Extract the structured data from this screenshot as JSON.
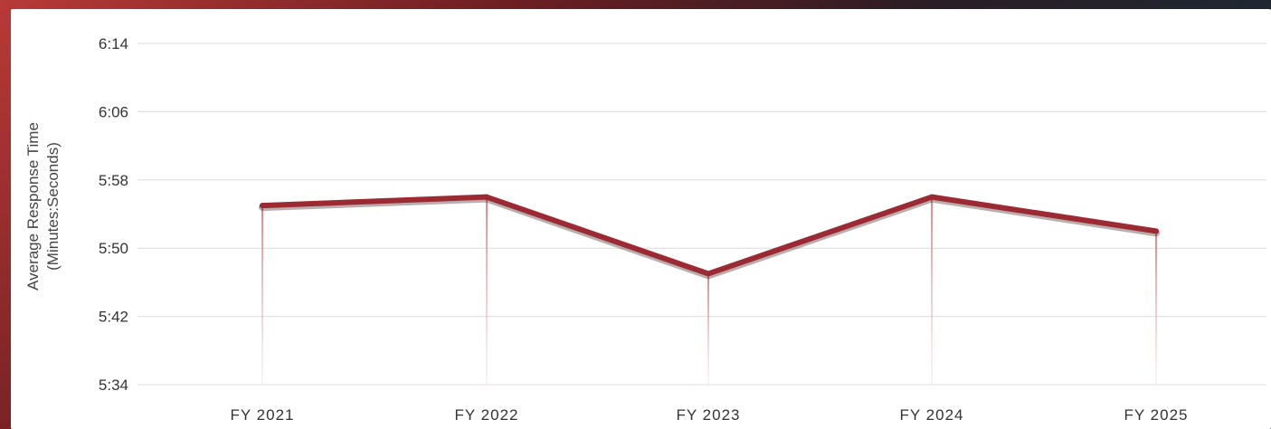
{
  "chart_data": {
    "type": "line",
    "title": "",
    "xlabel": "",
    "ylabel": "Average Response Time",
    "ylabel_sub": "(Minutes:Seconds)",
    "categories": [
      "FY 2021",
      "FY 2022",
      "FY 2023",
      "FY 2024",
      "FY 2025"
    ],
    "y_ticks": [
      "5:34",
      "5:42",
      "5:50",
      "5:58",
      "6:06",
      "6:14"
    ],
    "y_tick_seconds": [
      334,
      342,
      350,
      358,
      366,
      374
    ],
    "ylim_seconds": [
      334,
      374
    ],
    "series": [
      {
        "values_seconds": [
          355,
          356,
          347,
          356,
          352
        ],
        "color": "#9b2a33"
      }
    ],
    "grid": true,
    "legend": "none"
  }
}
